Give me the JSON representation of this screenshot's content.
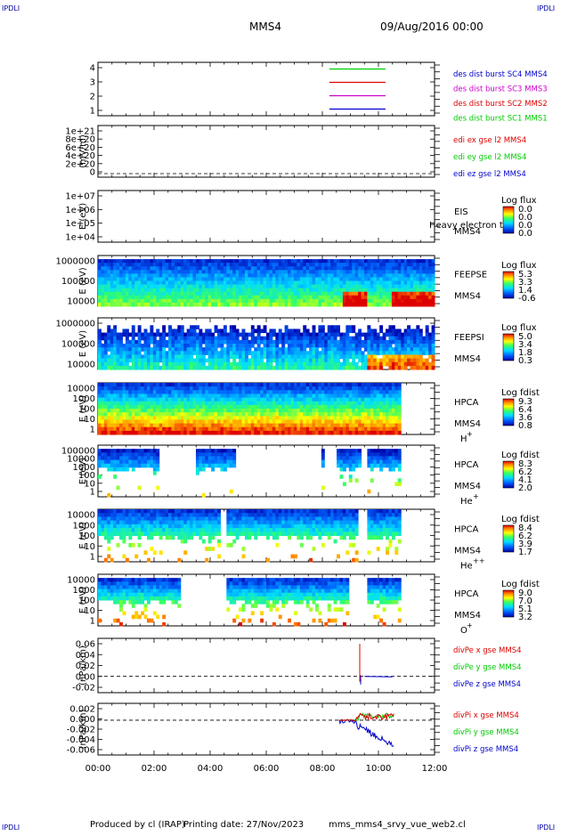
{
  "corner": {
    "top_left": "IPDLI",
    "top_right": "IPDLI",
    "bottom_left": "IPDLI",
    "bottom_right": "IPDLI"
  },
  "header": {
    "mission": "MMS4",
    "date": "09/Aug/2016 00:00"
  },
  "footer": {
    "produced": "Produced by cl (IRAP)",
    "printing": "Printing date: 27/Nov/2023",
    "file": "mms_mms4_srvy_vue_web2.cl"
  },
  "colors": {
    "red": "#dd0000",
    "green": "#00cc00",
    "blue": "#0000cc",
    "magenta": "#cc00cc",
    "frame": "#000000"
  },
  "chart_data": [
    {
      "type": "line",
      "panel": "burst",
      "yticks": [
        "4",
        "3",
        "2",
        "1"
      ],
      "ylim": [
        0.5,
        4.5
      ],
      "series": [
        {
          "name": "des dist burst SC1 MMS1",
          "color": "#00cc00",
          "y": 4,
          "x": [
            "08:15",
            "10:15"
          ]
        },
        {
          "name": "des dist burst SC2 MMS2",
          "color": "#dd0000",
          "y": 3,
          "x": [
            "08:15",
            "10:15"
          ]
        },
        {
          "name": "des dist burst SC3 MMS3",
          "color": "#cc00cc",
          "y": 2,
          "x": [
            "08:15",
            "10:15"
          ]
        },
        {
          "name": "des dist burst SC4 MMS4",
          "color": "#0000cc",
          "y": 1,
          "x": [
            "08:15",
            "10:15"
          ]
        }
      ],
      "legend_colors": [
        "#0000cc",
        "#cc00cc",
        "#dd0000",
        "#00cc00"
      ]
    },
    {
      "type": "line",
      "panel": "edi",
      "ylabel": "(mV/m)",
      "yticks": [
        "1e+21",
        "8e+20",
        "6e+20",
        "4e+20",
        "2e+20",
        "0"
      ],
      "legend": [
        "edi ex gse l2 MMS4",
        "edi ey gse l2 MMS4",
        "edi ez gse l2 MMS4"
      ],
      "legend_colors": [
        "#dd0000",
        "#00cc00",
        "#0000cc"
      ]
    },
    {
      "type": "heatmap",
      "panel": "eis",
      "ylabel": "E (eV)",
      "yticks": [
        "1e+07",
        "1e+06",
        "1e+05",
        "1e+04"
      ],
      "labels": [
        "EIS",
        "MMS4"
      ],
      "overlay": "Heavy electron to",
      "colorbar": {
        "title": "Log flux",
        "ticks": [
          "0.0",
          "0.0",
          "0.0",
          "0.0"
        ]
      }
    },
    {
      "type": "heatmap",
      "panel": "feepse",
      "ylabel": "E (eV)",
      "yticks": [
        "1000000",
        "100000",
        "10000"
      ],
      "labels": [
        "FEEPSE",
        "MMS4"
      ],
      "colorbar": {
        "title": "Log flux",
        "ticks": [
          "5.3",
          "3.3",
          "1.4",
          "-0.6"
        ]
      }
    },
    {
      "type": "heatmap",
      "panel": "feepsi",
      "ylabel": "E (eV)",
      "yticks": [
        "1000000",
        "100000",
        "10000"
      ],
      "labels": [
        "FEEPSI",
        "MMS4"
      ],
      "colorbar": {
        "title": "Log flux",
        "ticks": [
          "5.0",
          "3.4",
          "1.8",
          "0.3"
        ]
      }
    },
    {
      "type": "heatmap",
      "panel": "hpca_h",
      "ylabel": "E (eV)",
      "yticks": [
        "10000",
        "1000",
        "100",
        "10",
        "1"
      ],
      "labels": [
        "HPCA",
        "MMS4"
      ],
      "species": "H",
      "species_sup": "+",
      "colorbar": {
        "title": "Log fdist",
        "ticks": [
          "9.3",
          "6.4",
          "3.6",
          "0.8"
        ]
      }
    },
    {
      "type": "heatmap",
      "panel": "hpca_he",
      "ylabel": "E (eV)",
      "yticks": [
        "100000",
        "10000",
        "1000",
        "100",
        "10",
        "1"
      ],
      "labels": [
        "HPCA",
        "MMS4"
      ],
      "species": "He",
      "species_sup": "+",
      "colorbar": {
        "title": "Log fdist",
        "ticks": [
          "8.3",
          "6.2",
          "4.1",
          "2.0"
        ]
      }
    },
    {
      "type": "heatmap",
      "panel": "hpca_hepp",
      "ylabel": "E (eV)",
      "yticks": [
        "10000",
        "1000",
        "100",
        "10",
        "1"
      ],
      "labels": [
        "HPCA",
        "MMS4"
      ],
      "species": "He",
      "species_sup": "++",
      "colorbar": {
        "title": "Log fdist",
        "ticks": [
          "8.4",
          "6.2",
          "3.9",
          "1.7"
        ]
      }
    },
    {
      "type": "heatmap",
      "panel": "hpca_o",
      "ylabel": "E (eV)",
      "yticks": [
        "10000",
        "1000",
        "100",
        "10",
        "1"
      ],
      "labels": [
        "HPCA",
        "MMS4"
      ],
      "species": "O",
      "species_sup": "+",
      "colorbar": {
        "title": "Log fdist",
        "ticks": [
          "9.0",
          "7.0",
          "5.1",
          "3.2"
        ]
      }
    },
    {
      "type": "line",
      "panel": "divpe",
      "ylabel": "(nPa/km)",
      "yticks": [
        "0.06",
        "0.04",
        "0.02",
        "0.00",
        "-0.02"
      ],
      "ylim": [
        -0.03,
        0.07
      ],
      "legend": [
        "divPe x gse MMS4",
        "divPe y gse MMS4",
        "divPe z gse MMS4"
      ],
      "legend_colors": [
        "#dd0000",
        "#00cc00",
        "#0000cc"
      ]
    },
    {
      "type": "line",
      "panel": "divpi",
      "ylabel": "(nPa/km)",
      "yticks": [
        "0.002",
        "0.000",
        "-0.002",
        "-0.004",
        "-0.006"
      ],
      "ylim": [
        -0.0062,
        0.003
      ],
      "legend": [
        "divPi x gse MMS4",
        "divPi y gse MMS4",
        "divPi z gse MMS4"
      ],
      "legend_colors": [
        "#dd0000",
        "#00cc00",
        "#0000cc"
      ]
    }
  ],
  "xaxis": {
    "ticks": [
      "00:00",
      "02:00",
      "04:00",
      "06:00",
      "08:00",
      "10:00",
      "12:00"
    ],
    "range": [
      "00:00",
      "12:00"
    ]
  }
}
